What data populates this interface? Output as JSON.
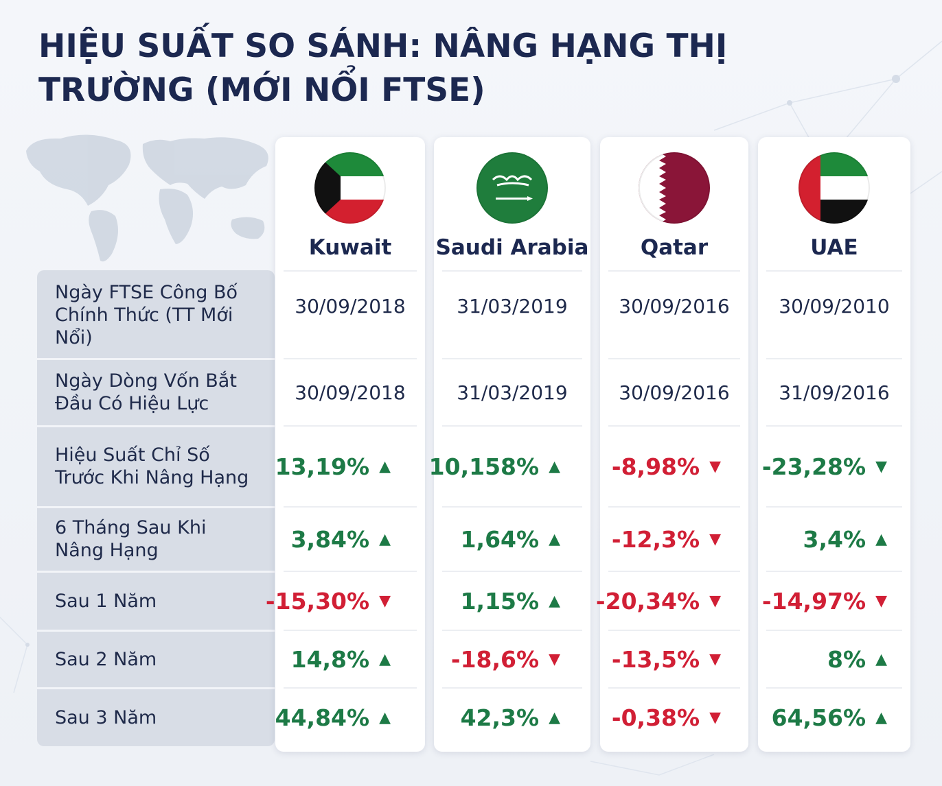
{
  "title": "HIỆU SUẤT SO SÁNH: NÂNG HẠNG THỊ TRƯỜNG (MỚI NỔI FTSE)",
  "row_labels": [
    "Ngày FTSE Công Bố Chính Thức (TT Mới Nổi)",
    "Ngày Dòng Vốn Bắt Đầu Có Hiệu Lực",
    "Hiệu Suất Chỉ Số Trước Khi Nâng Hạng",
    "6 Tháng Sau Khi Nâng Hạng",
    "Sau 1 Năm",
    "Sau 2 Năm",
    "Sau 3 Năm"
  ],
  "countries": [
    {
      "name": "Kuwait",
      "flag": "kuwait-flag",
      "cells": [
        {
          "text": "30/09/2018",
          "dir": ""
        },
        {
          "text": "30/09/2018",
          "dir": ""
        },
        {
          "text": "13,19%",
          "dir": "up"
        },
        {
          "text": "3,84%",
          "dir": "up"
        },
        {
          "text": "-15,30%",
          "dir": "down"
        },
        {
          "text": "14,8%",
          "dir": "up"
        },
        {
          "text": "44,84%",
          "dir": "up"
        }
      ]
    },
    {
      "name": "Saudi Arabia",
      "flag": "saudi-arabia-flag",
      "cells": [
        {
          "text": "31/03/2019",
          "dir": ""
        },
        {
          "text": "31/03/2019",
          "dir": ""
        },
        {
          "text": "10,158%",
          "dir": "up"
        },
        {
          "text": "1,64%",
          "dir": "up"
        },
        {
          "text": "1,15%",
          "dir": "up"
        },
        {
          "text": "-18,6%",
          "dir": "down"
        },
        {
          "text": "42,3%",
          "dir": "up"
        }
      ]
    },
    {
      "name": "Qatar",
      "flag": "qatar-flag",
      "cells": [
        {
          "text": "30/09/2016",
          "dir": ""
        },
        {
          "text": "30/09/2016",
          "dir": ""
        },
        {
          "text": "-8,98%",
          "dir": "down"
        },
        {
          "text": "-12,3%",
          "dir": "down"
        },
        {
          "text": "-20,34%",
          "dir": "down"
        },
        {
          "text": "-13,5%",
          "dir": "down"
        },
        {
          "text": "-0,38%",
          "dir": "down"
        }
      ]
    },
    {
      "name": "UAE",
      "flag": "uae-flag",
      "cells": [
        {
          "text": "30/09/2010",
          "dir": ""
        },
        {
          "text": "31/09/2016",
          "dir": ""
        },
        {
          "text": "-23,28%",
          "dir": "down-green"
        },
        {
          "text": "3,4%",
          "dir": "up"
        },
        {
          "text": "-14,97%",
          "dir": "down"
        },
        {
          "text": "8%",
          "dir": "up"
        },
        {
          "text": "64,56%",
          "dir": "up"
        }
      ]
    }
  ],
  "colors": {
    "title": "#1c2850",
    "positive": "#1d7a46",
    "negative": "#d11f35",
    "label_panel": "#d8dde6",
    "card": "#ffffff"
  },
  "icons": {
    "up": "triangle-up-icon",
    "down": "triangle-down-icon"
  }
}
